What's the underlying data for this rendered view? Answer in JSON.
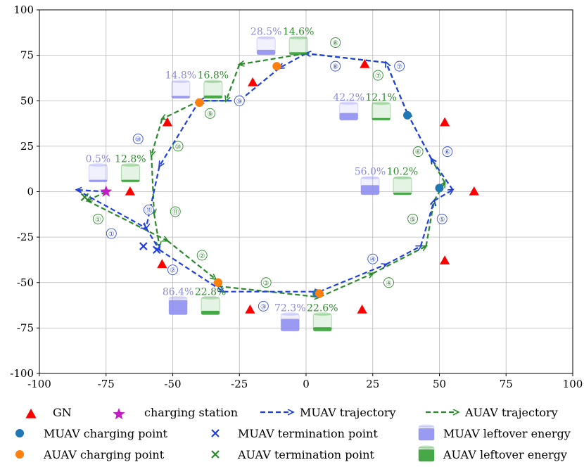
{
  "chart_data": {
    "type": "scatter",
    "title": "",
    "xlabel": "",
    "ylabel": "",
    "xlim": [
      -100,
      100
    ],
    "ylim": [
      -100,
      100
    ],
    "xticks": [
      "-100",
      "-75",
      "-50",
      "-25",
      "0",
      "25",
      "50",
      "75",
      "100"
    ],
    "yticks": [
      "100",
      "75",
      "50",
      "25",
      "0",
      "-25",
      "-50",
      "-75",
      "-100"
    ],
    "grid": true,
    "legend_position": "bottom",
    "ground_nodes": [
      [
        -66,
        0
      ],
      [
        -54,
        -40
      ],
      [
        -21,
        -65
      ],
      [
        21,
        -65
      ],
      [
        52,
        -38
      ],
      [
        63,
        0
      ],
      [
        52,
        38
      ],
      [
        22,
        70
      ],
      [
        -20,
        60
      ],
      [
        -52,
        38
      ]
    ],
    "charging_station": [
      -75,
      0
    ],
    "muav_trajectory": [
      [
        -75,
        0
      ],
      [
        -86,
        1
      ],
      [
        -60,
        -20
      ],
      [
        -55,
        -32
      ],
      [
        -31,
        -55
      ],
      [
        5,
        -55
      ],
      [
        30,
        -40
      ],
      [
        43,
        -30
      ],
      [
        48,
        -5
      ],
      [
        55,
        1
      ],
      [
        47,
        18
      ],
      [
        38,
        43
      ],
      [
        30,
        71
      ],
      [
        0,
        76
      ],
      [
        -10,
        68
      ],
      [
        -25,
        50
      ],
      [
        -40,
        50
      ],
      [
        -55,
        14
      ],
      [
        -60,
        -20
      ]
    ],
    "auav_trajectory": [
      [
        -75,
        0
      ],
      [
        -82,
        -5
      ],
      [
        -52,
        -27
      ],
      [
        -34,
        -48
      ],
      [
        -33,
        -52
      ],
      [
        5,
        -58
      ],
      [
        25,
        -45
      ],
      [
        45,
        -30
      ],
      [
        48,
        -5
      ],
      [
        52,
        5
      ],
      [
        47,
        18
      ],
      [
        38,
        43
      ],
      [
        30,
        71
      ],
      [
        0,
        76
      ],
      [
        -25,
        70
      ],
      [
        -30,
        50
      ],
      [
        -40,
        50
      ],
      [
        -54,
        40
      ],
      [
        -58,
        20
      ],
      [
        -57,
        -12
      ],
      [
        -55,
        -30
      ]
    ],
    "muav_charging_points": [
      [
        -40,
        49
      ],
      [
        38,
        42
      ],
      [
        50,
        2
      ],
      [
        -33,
        -50
      ],
      [
        4,
        -56
      ]
    ],
    "auav_charging_points": [
      [
        -40,
        49
      ],
      [
        -11,
        69
      ],
      [
        -33,
        -50
      ],
      [
        5,
        -56
      ]
    ],
    "muav_termination_points": [
      [
        -56,
        -32
      ],
      [
        -61,
        -30
      ]
    ],
    "auav_termination_points": [
      [
        -83,
        -3
      ]
    ],
    "muav_waypoints": [
      {
        "label": "①",
        "x": -73,
        "y": -23
      },
      {
        "label": "②",
        "x": -50,
        "y": -43
      },
      {
        "label": "③",
        "x": -16,
        "y": -63
      },
      {
        "label": "④",
        "x": 25,
        "y": -37
      },
      {
        "label": "⑤",
        "x": 51,
        "y": -15
      },
      {
        "label": "⑥",
        "x": 53,
        "y": 22
      },
      {
        "label": "⑦",
        "x": 35,
        "y": 69
      },
      {
        "label": "⑧",
        "x": 11,
        "y": 69
      },
      {
        "label": "⑨",
        "x": -25,
        "y": 50
      },
      {
        "label": "⑩",
        "x": -63,
        "y": 29
      },
      {
        "label": "⑪",
        "x": -59,
        "y": -10
      }
    ],
    "auav_waypoints": [
      {
        "label": "①",
        "x": -78,
        "y": -15
      },
      {
        "label": "②",
        "x": -39,
        "y": -35
      },
      {
        "label": "③",
        "x": -15,
        "y": -50
      },
      {
        "label": "④",
        "x": 31,
        "y": -50
      },
      {
        "label": "⑤",
        "x": 40,
        "y": -15
      },
      {
        "label": "⑥",
        "x": 42,
        "y": 22
      },
      {
        "label": "⑦",
        "x": 27,
        "y": 64
      },
      {
        "label": "⑧",
        "x": 11,
        "y": 82
      },
      {
        "label": "⑨",
        "x": -36,
        "y": 43
      },
      {
        "label": "⑩",
        "x": -48,
        "y": 25
      },
      {
        "label": "⑪",
        "x": -49,
        "y": -11
      }
    ],
    "leftover_energy": [
      {
        "x": -78,
        "y": 10,
        "muav": "0.5%",
        "auav": "12.8%",
        "muav_value": 0.5,
        "auav_value": 12.8
      },
      {
        "x": -47,
        "y": 56,
        "muav": "14.8%",
        "auav": "16.8%",
        "muav_value": 14.8,
        "auav_value": 16.8
      },
      {
        "x": -15,
        "y": 80,
        "muav": "28.5%",
        "auav": "14.6%",
        "muav_value": 28.5,
        "auav_value": 14.6
      },
      {
        "x": 16,
        "y": 44,
        "muav": "42.2%",
        "auav": "12.1%",
        "muav_value": 42.2,
        "auav_value": 12.1
      },
      {
        "x": 24,
        "y": 3,
        "muav": "56.0%",
        "auav": "10.2%",
        "muav_value": 56.0,
        "auav_value": 10.2
      },
      {
        "x": -6,
        "y": -72,
        "muav": "72.3%",
        "auav": "22.6%",
        "muav_value": 72.3,
        "auav_value": 22.6
      },
      {
        "x": -48,
        "y": -63,
        "muav": "86.4%",
        "auav": "22.8%",
        "muav_value": 86.4,
        "auav_value": 22.8
      }
    ],
    "legend": [
      {
        "key": "gn",
        "label": "GN"
      },
      {
        "key": "charging-station",
        "label": "charging station"
      },
      {
        "key": "muav-trajectory",
        "label": "MUAV trajectory"
      },
      {
        "key": "auav-trajectory",
        "label": "AUAV trajectory"
      },
      {
        "key": "muav-charging-point",
        "label": "MUAV charging point"
      },
      {
        "key": "muav-termination-point",
        "label": "MUAV termination point"
      },
      {
        "key": "muav-leftover-energy",
        "label": "MUAV leftover energy"
      },
      {
        "key": "auav-charging-point",
        "label": "AUAV charging point"
      },
      {
        "key": "auav-termination-point",
        "label": "AUAV termination point"
      },
      {
        "key": "auav-leftover-energy",
        "label": "AUAV leftover energy"
      }
    ],
    "colors": {
      "gn": "#ff0000",
      "charging_station": "#c51bc5",
      "muav": "#1f3fe0",
      "auav": "#2a8a2a",
      "muav_charging": "#1f77b4",
      "auav_charging": "#ff7f0e",
      "muav_energy": "#8b8bf0",
      "auav_energy": "#2a9a2a"
    }
  }
}
